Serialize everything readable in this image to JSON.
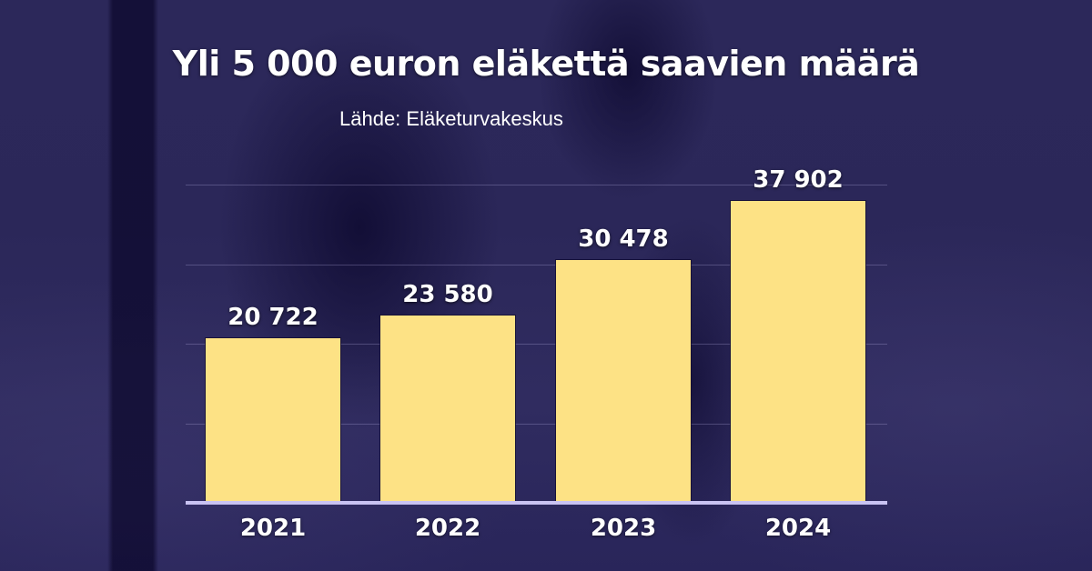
{
  "chart_data": {
    "type": "bar",
    "title": "Yli 5 000 euron eläkettä saavien määrä",
    "subtitle": "Lähde: Eläketurvakeskus",
    "categories": [
      "2021",
      "2022",
      "2023",
      "2024"
    ],
    "values": [
      20722,
      23580,
      30478,
      37902
    ],
    "value_labels": [
      "20 722",
      "23 580",
      "30 478",
      "37 902"
    ],
    "xlabel": "",
    "ylabel": "",
    "ylim": [
      0,
      40000
    ],
    "gridlines": [
      10000,
      20000,
      30000,
      40000
    ],
    "grid": true,
    "legend": null,
    "colors": {
      "bar": "#fde285",
      "background": "#2b2759",
      "text": "#ffffff",
      "baseline": "#c9c3f2"
    }
  },
  "header": {
    "title": "Yli 5 000 euron eläkettä saavien määrä",
    "source": "Lähde: Eläketurvakeskus"
  }
}
